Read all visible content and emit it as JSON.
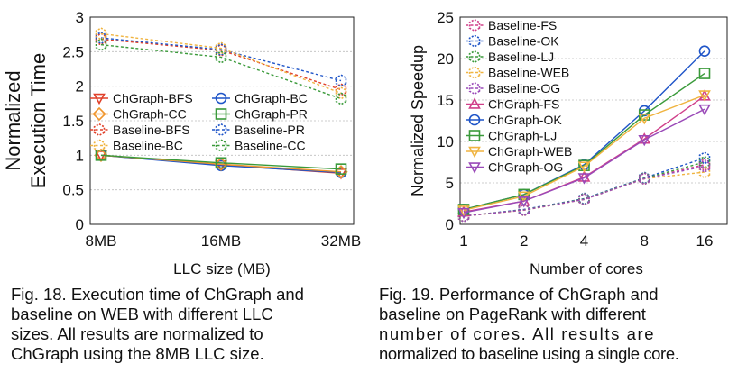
{
  "chart_data": [
    {
      "id": "fig18",
      "type": "line",
      "title": "",
      "xlabel": "LLC size (MB)",
      "ylabel_lines": [
        "Normalized",
        "Execution Time"
      ],
      "categories": [
        "8MB",
        "16MB",
        "32MB"
      ],
      "ylim": [
        0,
        3
      ],
      "yticks": [
        "0",
        "0.5",
        "1",
        "1.5",
        "2",
        "2.5",
        "3"
      ],
      "grid": true,
      "legend_position": "center-right",
      "series": [
        {
          "name": "ChGraph-BFS",
          "values": [
            1.0,
            0.86,
            0.74
          ],
          "color": "#e0402a",
          "marker": "triangle-down",
          "dashed": false
        },
        {
          "name": "ChGraph-BC",
          "values": [
            1.0,
            0.85,
            0.75
          ],
          "color": "#1f55c8",
          "marker": "circle",
          "dashed": false
        },
        {
          "name": "ChGraph-CC",
          "values": [
            1.0,
            0.87,
            0.76
          ],
          "color": "#f0962d",
          "marker": "diamond",
          "dashed": false
        },
        {
          "name": "ChGraph-PR",
          "values": [
            1.0,
            0.89,
            0.8
          ],
          "color": "#3a9a3a",
          "marker": "square",
          "dashed": false
        },
        {
          "name": "Baseline-BFS",
          "values": [
            2.68,
            2.52,
            1.95
          ],
          "color": "#e0402a",
          "marker": "hexagon",
          "dashed": true
        },
        {
          "name": "Baseline-PR",
          "values": [
            2.7,
            2.53,
            2.08
          ],
          "color": "#1f55c8",
          "marker": "hexagon",
          "dashed": true
        },
        {
          "name": "Baseline-BC",
          "values": [
            2.76,
            2.55,
            1.9
          ],
          "color": "#f0b440",
          "marker": "hexagon",
          "dashed": true
        },
        {
          "name": "Baseline-CC",
          "values": [
            2.6,
            2.42,
            1.82
          ],
          "color": "#3a9a3a",
          "marker": "hexagon",
          "dashed": true
        }
      ],
      "legend_order": [
        "ChGraph-BFS",
        "ChGraph-BC",
        "ChGraph-CC",
        "ChGraph-PR",
        "Baseline-BFS",
        "Baseline-PR",
        "Baseline-BC",
        "Baseline-CC"
      ]
    },
    {
      "id": "fig19",
      "type": "line",
      "title": "",
      "xlabel": "Number of cores",
      "ylabel": "Normalized Speedup",
      "categories": [
        "1",
        "2",
        "4",
        "8",
        "16"
      ],
      "ylim": [
        0,
        25
      ],
      "yticks": [
        "0",
        "5",
        "10",
        "15",
        "20",
        "25"
      ],
      "grid": true,
      "legend_position": "top-left",
      "series": [
        {
          "name": "Baseline-FS",
          "values": [
            1.0,
            1.75,
            3.05,
            5.5,
            7.2
          ],
          "color": "#d0408a",
          "marker": "hexagon",
          "dashed": true
        },
        {
          "name": "Baseline-OK",
          "values": [
            1.0,
            1.8,
            3.1,
            5.6,
            8.0
          ],
          "color": "#1f55c8",
          "marker": "hexagon",
          "dashed": true
        },
        {
          "name": "Baseline-LJ",
          "values": [
            1.0,
            1.75,
            3.05,
            5.55,
            7.5
          ],
          "color": "#3a9a3a",
          "marker": "hexagon",
          "dashed": true
        },
        {
          "name": "Baseline-WEB",
          "values": [
            1.0,
            1.7,
            3.0,
            5.5,
            6.3
          ],
          "color": "#f0b440",
          "marker": "hexagon",
          "dashed": true
        },
        {
          "name": "Baseline-OG",
          "values": [
            1.0,
            1.72,
            3.0,
            5.5,
            7.0
          ],
          "color": "#9a4ab8",
          "marker": "hexagon",
          "dashed": true
        },
        {
          "name": "ChGraph-FS",
          "values": [
            1.5,
            2.8,
            5.7,
            10.3,
            15.5
          ],
          "color": "#d0408a",
          "marker": "triangle-up",
          "dashed": false
        },
        {
          "name": "ChGraph-OK",
          "values": [
            1.8,
            3.6,
            7.2,
            13.7,
            20.9
          ],
          "color": "#1f55c8",
          "marker": "circle",
          "dashed": false
        },
        {
          "name": "ChGraph-LJ",
          "values": [
            1.8,
            3.6,
            7.1,
            13.2,
            18.2
          ],
          "color": "#3a9a3a",
          "marker": "square",
          "dashed": false
        },
        {
          "name": "ChGraph-WEB",
          "values": [
            1.7,
            3.4,
            7.0,
            12.8,
            15.6
          ],
          "color": "#f0b440",
          "marker": "triangle-down",
          "dashed": false
        },
        {
          "name": "ChGraph-OG",
          "values": [
            1.4,
            2.8,
            5.6,
            10.2,
            13.9
          ],
          "color": "#9a4ab8",
          "marker": "triangle-down",
          "dashed": false
        }
      ]
    }
  ],
  "captions": {
    "fig18": [
      "Fig. 18. Execution time of ChGraph and",
      "baseline on WEB with different LLC",
      "sizes. All results are normalized to",
      "ChGraph using the 8MB LLC size."
    ],
    "fig19": [
      "Fig. 19. Performance of ChGraph and",
      "baseline on PageRank with different",
      "number of cores. All results are",
      "normalized to baseline using a single core."
    ]
  }
}
